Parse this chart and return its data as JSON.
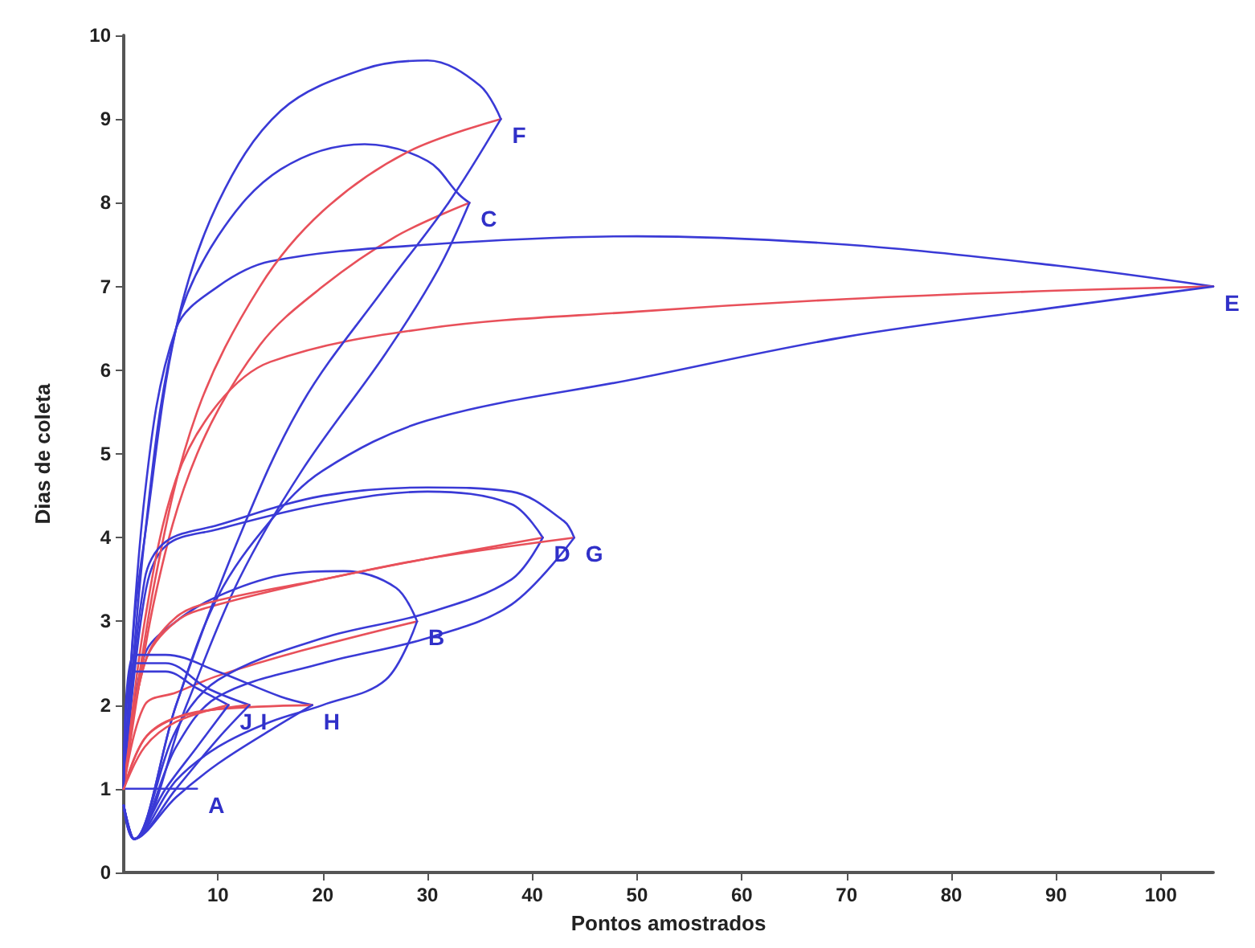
{
  "chart_data": {
    "type": "line",
    "xlabel": "Pontos amostrados",
    "ylabel": "Dias de coleta",
    "xlim": [
      1,
      105
    ],
    "xticks": [
      10,
      20,
      30,
      40,
      50,
      60,
      70,
      80,
      90,
      100
    ],
    "ylim": [
      0,
      10
    ],
    "yticks": [
      0,
      1,
      2,
      3,
      4,
      5,
      6,
      7,
      8,
      9,
      10
    ],
    "grid": false,
    "marker": "none",
    "line_style": "solid",
    "series": [
      {
        "color": "#3a3ad6",
        "x": [
          1,
          8
        ],
        "values": [
          1,
          1
        ]
      },
      {
        "color": "#3a3ad6",
        "x": [
          1,
          3,
          6,
          10,
          16,
          22,
          27,
          29
        ],
        "values": [
          1,
          2.6,
          3,
          3.3,
          3.55,
          3.6,
          3.4,
          3
        ]
      },
      {
        "color": "#e8505a",
        "x": [
          1,
          3,
          6,
          10,
          18,
          29
        ],
        "values": [
          1,
          2,
          2.15,
          2.35,
          2.65,
          3
        ]
      },
      {
        "color": "#3a3ad6",
        "x": [
          1,
          2,
          6,
          10,
          15,
          20,
          26,
          29
        ],
        "values": [
          0.8,
          0.4,
          1.1,
          1.5,
          1.8,
          2,
          2.3,
          3
        ]
      },
      {
        "color": "#3a3ad6",
        "x": [
          1,
          3,
          6,
          10,
          16,
          24,
          30,
          33,
          34
        ],
        "values": [
          1,
          4,
          6.5,
          7.6,
          8.4,
          8.7,
          8.5,
          8.1,
          8
        ]
      },
      {
        "color": "#e8505a",
        "x": [
          1,
          4,
          8,
          14,
          20,
          27,
          34
        ],
        "values": [
          1,
          3.3,
          5,
          6.3,
          7,
          7.6,
          8
        ]
      },
      {
        "color": "#3a3ad6",
        "x": [
          1,
          2,
          7,
          12,
          18,
          26,
          31,
          34
        ],
        "values": [
          0.8,
          0.4,
          2,
          3.5,
          4.8,
          6.2,
          7.2,
          8
        ]
      },
      {
        "color": "#3a3ad6",
        "x": [
          1,
          3,
          5,
          10,
          20,
          30,
          38,
          41
        ],
        "values": [
          1,
          3.3,
          3.9,
          4.1,
          4.4,
          4.55,
          4.4,
          4
        ]
      },
      {
        "color": "#e8505a",
        "x": [
          1,
          3,
          6,
          10,
          20,
          30,
          41
        ],
        "values": [
          1,
          2.5,
          3,
          3.2,
          3.5,
          3.75,
          4
        ]
      },
      {
        "color": "#3a3ad6",
        "x": [
          1,
          2,
          6,
          10,
          20,
          30,
          38,
          41
        ],
        "values": [
          0.8,
          0.4,
          1.7,
          2.3,
          2.8,
          3.1,
          3.5,
          4
        ]
      },
      {
        "color": "#3a3ad6",
        "x": [
          1,
          3,
          6,
          10,
          15,
          30,
          50,
          70,
          90,
          105
        ],
        "values": [
          1,
          4.5,
          6.5,
          7,
          7.3,
          7.5,
          7.6,
          7.5,
          7.25,
          7
        ]
      },
      {
        "color": "#e8505a",
        "x": [
          1,
          3,
          6,
          10,
          15,
          30,
          50,
          70,
          90,
          105
        ],
        "values": [
          1,
          3,
          4.7,
          5.6,
          6.1,
          6.5,
          6.7,
          6.85,
          6.95,
          7
        ]
      },
      {
        "color": "#3a3ad6",
        "x": [
          1,
          2,
          6,
          10,
          15,
          20,
          30,
          50,
          70,
          90,
          105
        ],
        "values": [
          0.8,
          0.4,
          2,
          3.3,
          4.2,
          4.8,
          5.4,
          5.9,
          6.4,
          6.75,
          7
        ]
      },
      {
        "color": "#3a3ad6",
        "x": [
          1,
          2,
          3,
          6,
          10,
          16,
          24,
          30,
          35,
          37
        ],
        "values": [
          1,
          3,
          4,
          6.5,
          8,
          9.1,
          9.6,
          9.7,
          9.4,
          9
        ]
      },
      {
        "color": "#e8505a",
        "x": [
          1,
          4,
          8,
          14,
          20,
          28,
          37
        ],
        "values": [
          1,
          3.5,
          5.5,
          7,
          7.9,
          8.6,
          9
        ]
      },
      {
        "color": "#3a3ad6",
        "x": [
          1,
          2,
          6,
          12,
          18,
          26,
          32,
          37
        ],
        "values": [
          0.8,
          0.4,
          2,
          4,
          5.6,
          7,
          8,
          9
        ]
      },
      {
        "color": "#3a3ad6",
        "x": [
          1,
          3,
          5,
          10,
          20,
          30,
          38,
          43,
          44
        ],
        "values": [
          1,
          3.5,
          3.95,
          4.15,
          4.5,
          4.6,
          4.55,
          4.2,
          4
        ]
      },
      {
        "color": "#e8505a",
        "x": [
          1,
          3,
          6,
          10,
          20,
          30,
          44
        ],
        "values": [
          1,
          2.5,
          3.05,
          3.25,
          3.5,
          3.75,
          4
        ]
      },
      {
        "color": "#3a3ad6",
        "x": [
          1,
          2,
          6,
          10,
          20,
          30,
          38,
          44
        ],
        "values": [
          0.8,
          0.4,
          1.5,
          2.1,
          2.5,
          2.8,
          3.2,
          4
        ]
      },
      {
        "color": "#3a3ad6",
        "x": [
          1,
          2,
          5,
          10,
          16,
          19
        ],
        "values": [
          1,
          2.6,
          2.6,
          2.4,
          2.1,
          2
        ]
      },
      {
        "color": "#e8505a",
        "x": [
          1,
          3,
          6,
          10,
          19
        ],
        "values": [
          1,
          1.6,
          1.85,
          1.95,
          2
        ]
      },
      {
        "color": "#3a3ad6",
        "x": [
          1,
          2,
          6,
          10,
          15,
          19
        ],
        "values": [
          0.8,
          0.4,
          0.9,
          1.3,
          1.7,
          2
        ]
      },
      {
        "color": "#3a3ad6",
        "x": [
          1,
          2,
          5,
          9,
          13
        ],
        "values": [
          1,
          2.5,
          2.5,
          2.2,
          2
        ]
      },
      {
        "color": "#e8505a",
        "x": [
          1,
          3,
          6,
          13
        ],
        "values": [
          1,
          1.6,
          1.85,
          2
        ]
      },
      {
        "color": "#3a3ad6",
        "x": [
          1,
          2,
          6,
          10,
          13
        ],
        "values": [
          0.8,
          0.4,
          1,
          1.6,
          2
        ]
      },
      {
        "color": "#3a3ad6",
        "x": [
          1,
          2,
          5,
          8,
          11
        ],
        "values": [
          1,
          2.4,
          2.4,
          2.2,
          2
        ]
      },
      {
        "color": "#e8505a",
        "x": [
          1,
          3,
          6,
          11
        ],
        "values": [
          1,
          1.5,
          1.8,
          2
        ]
      },
      {
        "color": "#3a3ad6",
        "x": [
          1,
          2,
          5,
          8,
          11
        ],
        "values": [
          0.8,
          0.4,
          1,
          1.5,
          2
        ]
      }
    ],
    "annotations": [
      {
        "text": "A",
        "x": 8,
        "y": 1
      },
      {
        "text": "B",
        "x": 29,
        "y": 3
      },
      {
        "text": "C",
        "x": 34,
        "y": 8
      },
      {
        "text": "D",
        "x": 41,
        "y": 4
      },
      {
        "text": "E",
        "x": 105,
        "y": 7
      },
      {
        "text": "F",
        "x": 37,
        "y": 9
      },
      {
        "text": "G",
        "x": 44,
        "y": 4
      },
      {
        "text": "H",
        "x": 19,
        "y": 2
      },
      {
        "text": "I",
        "x": 13,
        "y": 2
      },
      {
        "text": "J",
        "x": 11,
        "y": 2
      }
    ]
  }
}
